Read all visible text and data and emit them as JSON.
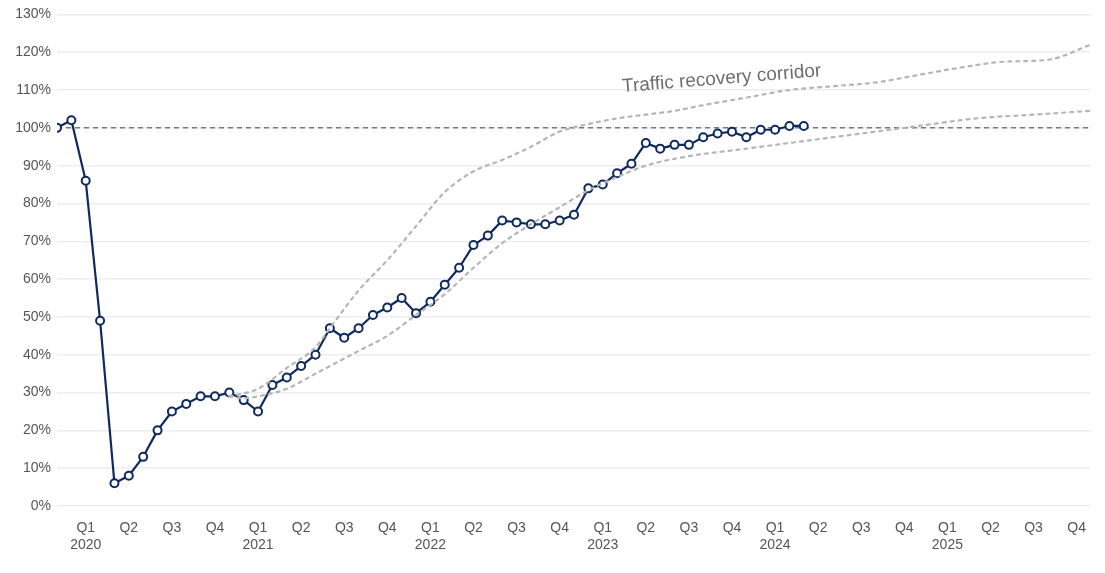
{
  "chart_data": {
    "type": "line",
    "xlim": [
      "2019-12",
      "2025-12"
    ],
    "xticks": [
      {
        "value": "2020-02",
        "label": "Q1 2020"
      },
      {
        "value": "2020-05",
        "label": "Q2"
      },
      {
        "value": "2020-08",
        "label": "Q3"
      },
      {
        "value": "2020-11",
        "label": "Q4"
      },
      {
        "value": "2021-02",
        "label": "Q1 2021"
      },
      {
        "value": "2021-05",
        "label": "Q2"
      },
      {
        "value": "2021-08",
        "label": "Q3"
      },
      {
        "value": "2021-11",
        "label": "Q4"
      },
      {
        "value": "2022-02",
        "label": "Q1 2022"
      },
      {
        "value": "2022-05",
        "label": "Q2"
      },
      {
        "value": "2022-08",
        "label": "Q3"
      },
      {
        "value": "2022-11",
        "label": "Q4"
      },
      {
        "value": "2023-02",
        "label": "Q1 2023"
      },
      {
        "value": "2023-05",
        "label": "Q2"
      },
      {
        "value": "2023-08",
        "label": "Q3"
      },
      {
        "value": "2023-11",
        "label": "Q4"
      },
      {
        "value": "2024-02",
        "label": "Q1 2024"
      },
      {
        "value": "2024-05",
        "label": "Q2"
      },
      {
        "value": "2024-08",
        "label": "Q3"
      },
      {
        "value": "2024-11",
        "label": "Q4"
      },
      {
        "value": "2025-02",
        "label": "Q1 2025"
      },
      {
        "value": "2025-05",
        "label": "Q2"
      },
      {
        "value": "2025-08",
        "label": "Q3"
      },
      {
        "value": "2025-11",
        "label": "Q4"
      }
    ],
    "ylim": [
      0,
      130
    ],
    "yticks": [
      {
        "value": 0,
        "label": "0%"
      },
      {
        "value": 10,
        "label": "10%"
      },
      {
        "value": 20,
        "label": "20%"
      },
      {
        "value": 30,
        "label": "30%"
      },
      {
        "value": 40,
        "label": "40%"
      },
      {
        "value": 50,
        "label": "50%"
      },
      {
        "value": 60,
        "label": "60%"
      },
      {
        "value": 70,
        "label": "70%"
      },
      {
        "value": 80,
        "label": "80%"
      },
      {
        "value": 90,
        "label": "90%"
      },
      {
        "value": 100,
        "label": "100%"
      },
      {
        "value": 110,
        "label": "110%"
      },
      {
        "value": 120,
        "label": "120%"
      },
      {
        "value": 130,
        "label": "130%"
      }
    ],
    "grid": "y",
    "legend": false,
    "ref_lines": [
      {
        "axis": "y",
        "value": 100,
        "color": "#6b7a99",
        "line_style": "dashed"
      }
    ],
    "annotations": [
      "Traffic recovery corridor"
    ],
    "series": [
      {
        "color": "#b5b5b5",
        "line_style": "dotted",
        "marker": "none",
        "x": [
          "2020-12",
          "2021-02",
          "2021-04",
          "2021-06",
          "2021-07",
          "2021-09",
          "2021-11",
          "2022-01",
          "2022-03",
          "2022-05",
          "2022-07",
          "2022-09",
          "2022-11",
          "2023-01",
          "2023-03",
          "2023-05",
          "2023-07",
          "2023-09",
          "2023-12",
          "2024-03",
          "2024-06",
          "2024-09",
          "2024-12",
          "2025-03",
          "2025-06",
          "2025-09",
          "2025-12"
        ],
        "values": [
          29,
          31,
          36.5,
          42,
          47,
          57,
          65,
          74,
          83,
          88.5,
          91.5,
          95,
          99,
          101,
          102.5,
          103.5,
          104.5,
          106,
          108,
          110,
          111,
          112,
          114,
          116,
          117.5,
          118,
          122
        ]
      },
      {
        "color": "#b5b5b5",
        "line_style": "dotted",
        "marker": "none",
        "x": [
          "2020-12",
          "2021-01",
          "2021-02",
          "2021-04",
          "2021-06",
          "2021-09",
          "2021-11",
          "2022-01",
          "2022-03",
          "2022-05",
          "2022-07",
          "2022-09",
          "2022-11",
          "2023-01",
          "2023-03",
          "2023-05",
          "2023-08",
          "2023-12",
          "2024-04",
          "2024-08",
          "2024-12",
          "2025-04",
          "2025-08",
          "2025-12"
        ],
        "values": [
          29,
          28.5,
          29,
          31,
          35,
          41,
          45,
          50.5,
          56,
          63,
          69.5,
          74.5,
          79,
          83.5,
          87,
          90,
          92.5,
          94.5,
          96.5,
          98.5,
          100.5,
          102.5,
          103.5,
          104.5
        ]
      },
      {
        "color": "#0f2a5c",
        "line_style": "solid",
        "marker": "circle",
        "x": [
          "2019-12",
          "2020-01",
          "2020-02",
          "2020-03",
          "2020-04",
          "2020-05",
          "2020-06",
          "2020-07",
          "2020-08",
          "2020-09",
          "2020-10",
          "2020-11",
          "2020-12",
          "2021-01",
          "2021-02",
          "2021-03",
          "2021-04",
          "2021-05",
          "2021-06",
          "2021-07",
          "2021-08",
          "2021-09",
          "2021-10",
          "2021-11",
          "2021-12",
          "2022-01",
          "2022-02",
          "2022-03",
          "2022-04",
          "2022-05",
          "2022-06",
          "2022-07",
          "2022-08",
          "2022-09",
          "2022-10",
          "2022-11",
          "2022-12",
          "2023-01",
          "2023-02",
          "2023-03",
          "2023-04",
          "2023-05",
          "2023-06",
          "2023-07",
          "2023-08",
          "2023-09",
          "2023-10",
          "2023-11",
          "2023-12",
          "2024-01",
          "2024-02",
          "2024-03",
          "2024-04"
        ],
        "values": [
          100,
          102,
          86,
          49,
          6,
          8,
          13,
          20,
          25,
          27,
          29,
          29,
          30,
          28,
          25,
          32,
          34,
          37,
          40,
          47,
          44.5,
          47,
          50.5,
          52.5,
          55,
          51,
          54,
          58.5,
          63,
          69,
          71.5,
          75.5,
          75,
          74.5,
          74.5,
          75.5,
          77,
          84,
          85,
          88,
          90.5,
          96,
          94.5,
          95.5,
          95.5,
          97.5,
          98.5,
          99,
          97.5,
          99.5,
          99.5,
          100.5,
          100.5
        ]
      }
    ]
  }
}
